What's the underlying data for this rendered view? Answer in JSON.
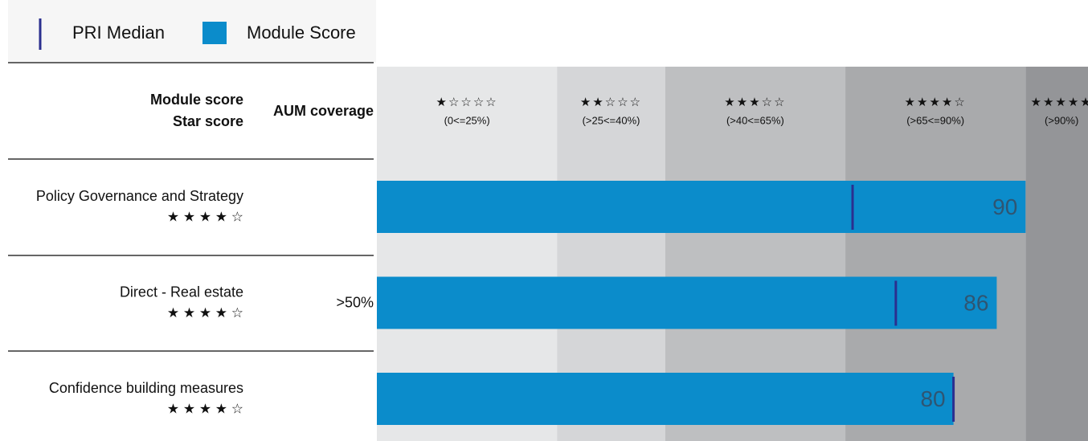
{
  "chart_data": {
    "type": "bar",
    "header": {
      "score": "Module score",
      "star": "Star score",
      "coverage": "AUM coverage"
    },
    "xlim": [
      0,
      100
    ],
    "bands": [
      {
        "stars": "★☆☆☆☆",
        "label": "(0<=25%)",
        "range": [
          0,
          25
        ],
        "color": "#e6e7e8"
      },
      {
        "stars": "★★☆☆☆",
        "label": "(>25<=40%)",
        "range": [
          25,
          40
        ],
        "color": "#d5d6d8"
      },
      {
        "stars": "★★★☆☆",
        "label": "(>40<=65%)",
        "range": [
          40,
          65
        ],
        "color": "#bebfc1"
      },
      {
        "stars": "★★★★☆",
        "label": "(>65<=90%)",
        "range": [
          65,
          90
        ],
        "color": "#a9aaac"
      },
      {
        "stars": "★★★★★",
        "label": "(>90%)",
        "range": [
          90,
          100
        ],
        "color": "#949598"
      }
    ],
    "categories": [
      "Policy Governance and Strategy",
      "Direct - Real estate",
      "Confidence building measures"
    ],
    "star_scores": [
      "★ ★ ★ ★ ☆",
      "★ ★ ★ ★ ☆",
      "★ ★ ★ ★ ☆"
    ],
    "aum_coverage": [
      null,
      ">50%",
      null
    ],
    "series": [
      {
        "name": "PRI Median",
        "color": "#2b2f8f",
        "values": [
          66,
          72,
          80
        ]
      },
      {
        "name": "Module Score",
        "color": "#0b8ccb",
        "values": [
          90,
          86,
          80
        ]
      }
    ]
  }
}
